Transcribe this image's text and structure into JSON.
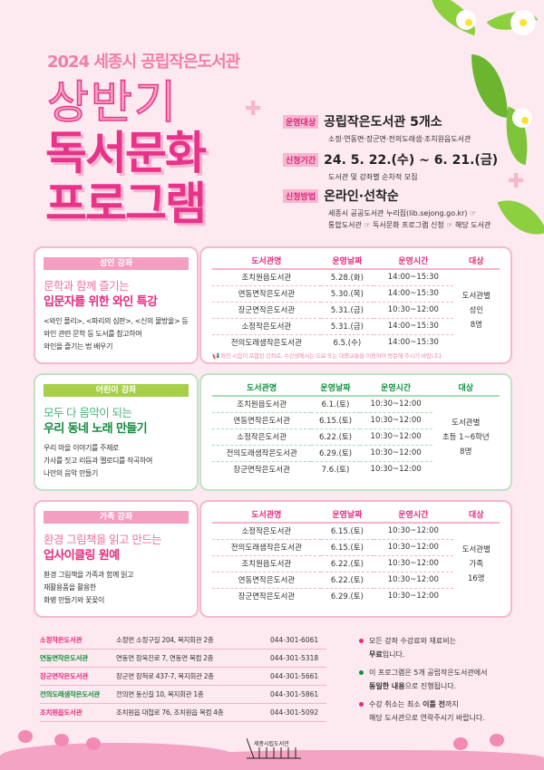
{
  "header": {
    "subtitle": "2024 세종시 공립작은도서관",
    "title_line1": "상반기",
    "title_line2": "독서문화",
    "title_line3": "프로그램"
  },
  "info": [
    {
      "label": "운영대상",
      "value": "공립작은도서관 5개소",
      "details": [
        "소정·연동면·장군면·전의도래샘·조치원읍도서관"
      ]
    },
    {
      "label": "신청기간",
      "value": "24. 5. 22.(수) ~ 6. 21.(금)",
      "details": [
        "도서관 및 강좌별 순차적 모집"
      ]
    },
    {
      "label": "신청방법",
      "value": "온라인·선착순",
      "details": [
        "세종시 공공도서관 누리집(lib.sejong.go.kr) ☞",
        "통합도서관 ☞ 독서문화 프로그램 신청 ☞ 해당 도서관"
      ]
    }
  ],
  "table_headers": [
    "도서관명",
    "운영날짜",
    "운영시간",
    "대상"
  ],
  "programs": [
    {
      "tag": "성인 강좌",
      "title_light": "문학과 함께 즐기는",
      "title_bold": "입문자를 위한 와인 특강",
      "desc": [
        "<와인 폴리>, <파리의 심판>, <신의 물방울> 등",
        "와인 관련 문학 등 도서를 참고하여",
        "와인을 즐기는 법 배우기"
      ],
      "rows": [
        [
          "조치원읍도서관",
          "5.28.(화)",
          "14:00~15:30"
        ],
        [
          "연동면작은도서관",
          "5.30.(목)",
          "14:00~15:30"
        ],
        [
          "장군면작은도서관",
          "5.31.(금)",
          "10:30~12:00"
        ],
        [
          "소정작은도서관",
          "5.31.(금)",
          "14:00~15:30"
        ],
        [
          "전의도래샘작은도서관",
          "6.5.(수)",
          "14:00~15:30"
        ]
      ],
      "audience": [
        "도서관별",
        "성인",
        "8명"
      ],
      "note": "📢 와인 시음이 포함된 강좌로, 수강생께서는 도보 또는 대중교통을 이용하여 방문해 주시기 바랍니다."
    },
    {
      "tag": "어린이 강좌",
      "title_light": "모두 다 음악이 되는",
      "title_bold": "우리 동네 노래 만들기",
      "desc": [
        "우리 마을 이야기를 주제로",
        "가사를 짓고 리듬과 멜로디를 작곡하여",
        "나만의 음악 만들기"
      ],
      "rows": [
        [
          "조치원읍도서관",
          "6.1.(토)",
          "10:30~12:00"
        ],
        [
          "연동면작은도서관",
          "6.15.(토)",
          "10:30~12:00"
        ],
        [
          "소정작은도서관",
          "6.22.(토)",
          "10:30~12:00"
        ],
        [
          "전의도래샘작은도서관",
          "6.29.(토)",
          "10:30~12:00"
        ],
        [
          "장군면작은도서관",
          "7.6.(토)",
          "10:30~12:00"
        ]
      ],
      "audience": [
        "도서관별",
        "초등 1~6학년",
        "8명"
      ]
    },
    {
      "tag": "가족 강좌",
      "title_light": "환경 그림책을 읽고 만드는",
      "title_bold": "업사이클링 원예",
      "desc": [
        "환경 그림책을 가족과 함께 읽고",
        "재활용품을 활용한",
        "화병 만들기와 꽃꽂이"
      ],
      "rows": [
        [
          "소정작은도서관",
          "6.15.(토)",
          "10:30~12:00"
        ],
        [
          "전의도래샘작은도서관",
          "6.15.(토)",
          "10:30~12:00"
        ],
        [
          "조치원읍도서관",
          "6.22.(토)",
          "10:30~12:00"
        ],
        [
          "연동면작은도서관",
          "6.22.(토)",
          "10:30~12:00"
        ],
        [
          "장군면작은도서관",
          "6.29.(토)",
          "10:30~12:00"
        ]
      ],
      "audience": [
        "도서관별",
        "가족",
        "16명"
      ]
    }
  ],
  "contacts": [
    {
      "name": "소정작은도서관",
      "address": "소정면 소정구길 204, 복지회관 2층",
      "phone": "044-301-6061",
      "color": "#e72a7e"
    },
    {
      "name": "연동면작은도서관",
      "address": "연동면 장욱진로 7, 연동면 복컴 2층",
      "phone": "044-301-5318",
      "color": "#12913e"
    },
    {
      "name": "장군면작은도서관",
      "address": "장군면 장척로 437-7, 복지회관 2층",
      "phone": "044-301-5661",
      "color": "#e72a7e"
    },
    {
      "name": "전의도래샘작은도서관",
      "address": "전의면 동신길 10, 복지회관 1층",
      "phone": "044-301-5861",
      "color": "#12913e"
    },
    {
      "name": "조치원읍도서관",
      "address": "조치원읍 대첩로 76, 조치원읍 복컴 4층",
      "phone": "044-301-5092",
      "color": "#e72a7e"
    }
  ],
  "notices": [
    {
      "line1": "모든 강좌 수강료와 재료비는",
      "bold": "무료",
      "line2": "입니다.",
      "color": "#e72a7e"
    },
    {
      "line1": "이 프로그램은 5개 공립작은도서관에서",
      "bold": "동일한 내용",
      "line2": "으로 진행됩니다.",
      "color": "#12913e"
    },
    {
      "line1a": "수강 취소는 최소 ",
      "bold1": "이틀 전",
      "line1b": "까지",
      "line2": "해당 도서관으로 연락주시기 바랍니다.",
      "color": "#e72a7e"
    }
  ],
  "logo_text": "세종시립도서관"
}
